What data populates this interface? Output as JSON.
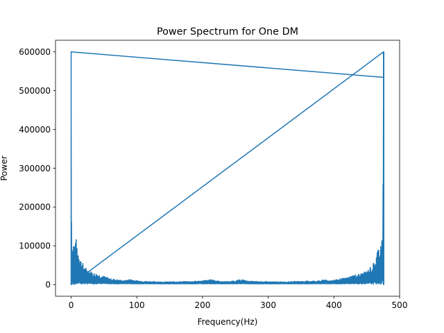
{
  "chart_data": {
    "type": "line",
    "title": "Power Spectrum for One DM",
    "xlabel": "Frequency(Hz)",
    "ylabel": "Power",
    "xlim": [
      -23.8,
      500
    ],
    "ylim": [
      -30000,
      630000
    ],
    "xticks": [
      0,
      100,
      200,
      300,
      400,
      500
    ],
    "xtick_labels": [
      "0",
      "100",
      "200",
      "300",
      "400",
      "500"
    ],
    "yticks": [
      0,
      100000,
      200000,
      300000,
      400000,
      500000,
      600000
    ],
    "ytick_labels": [
      "0",
      "100000",
      "200000",
      "300000",
      "400000",
      "500000",
      "600000"
    ],
    "grid": false,
    "legend": "none",
    "series": [
      {
        "color": "#1f77b4",
        "x_range": [
          0,
          476
        ],
        "envelope": {
          "x": [
            0,
            0.5,
            1,
            2,
            4,
            6,
            8,
            10,
            12,
            15,
            18,
            21,
            25,
            30,
            35,
            40,
            45,
            50,
            60,
            70,
            80,
            90,
            100,
            120,
            140,
            160,
            180,
            200,
            210,
            215,
            220,
            225,
            230,
            240,
            250,
            255,
            260,
            265,
            270,
            280,
            300,
            320,
            340,
            360,
            380,
            386,
            390,
            400,
            410,
            420,
            430,
            440,
            450,
            455,
            460,
            463,
            466,
            469,
            472,
            474,
            475,
            475.5,
            476
          ],
          "max": [
            600000,
            300000,
            125000,
            100000,
            120000,
            105000,
            120000,
            95000,
            90000,
            65000,
            55000,
            45000,
            40000,
            35000,
            30000,
            28000,
            25000,
            22000,
            15000,
            13000,
            10000,
            14000,
            10000,
            8000,
            7000,
            7500,
            8000,
            10000,
            12000,
            13000,
            11000,
            9000,
            8000,
            8000,
            10000,
            12000,
            13000,
            11000,
            9000,
            8000,
            7500,
            7000,
            8000,
            9000,
            10000,
            14000,
            10000,
            12000,
            15000,
            18000,
            25000,
            28000,
            35000,
            45000,
            55000,
            65000,
            90000,
            105000,
            120000,
            125000,
            300000,
            600000,
            600000
          ],
          "min": [
            0,
            0,
            0,
            0,
            0,
            0,
            500,
            500,
            800,
            1000,
            1000,
            1200,
            1500,
            1500,
            1800,
            2000,
            2000,
            2000,
            2000,
            2000,
            2000,
            2000,
            2000,
            2000,
            2000,
            2000,
            2000,
            2000,
            2000,
            2000,
            2000,
            2000,
            2000,
            2000,
            2000,
            2000,
            2000,
            2000,
            2000,
            2000,
            2000,
            2000,
            2000,
            2000,
            2000,
            2000,
            2000,
            2000,
            2000,
            2000,
            2000,
            1800,
            1500,
            1500,
            1200,
            1000,
            1000,
            800,
            500,
            500,
            0,
            0,
            0
          ]
        }
      }
    ]
  }
}
